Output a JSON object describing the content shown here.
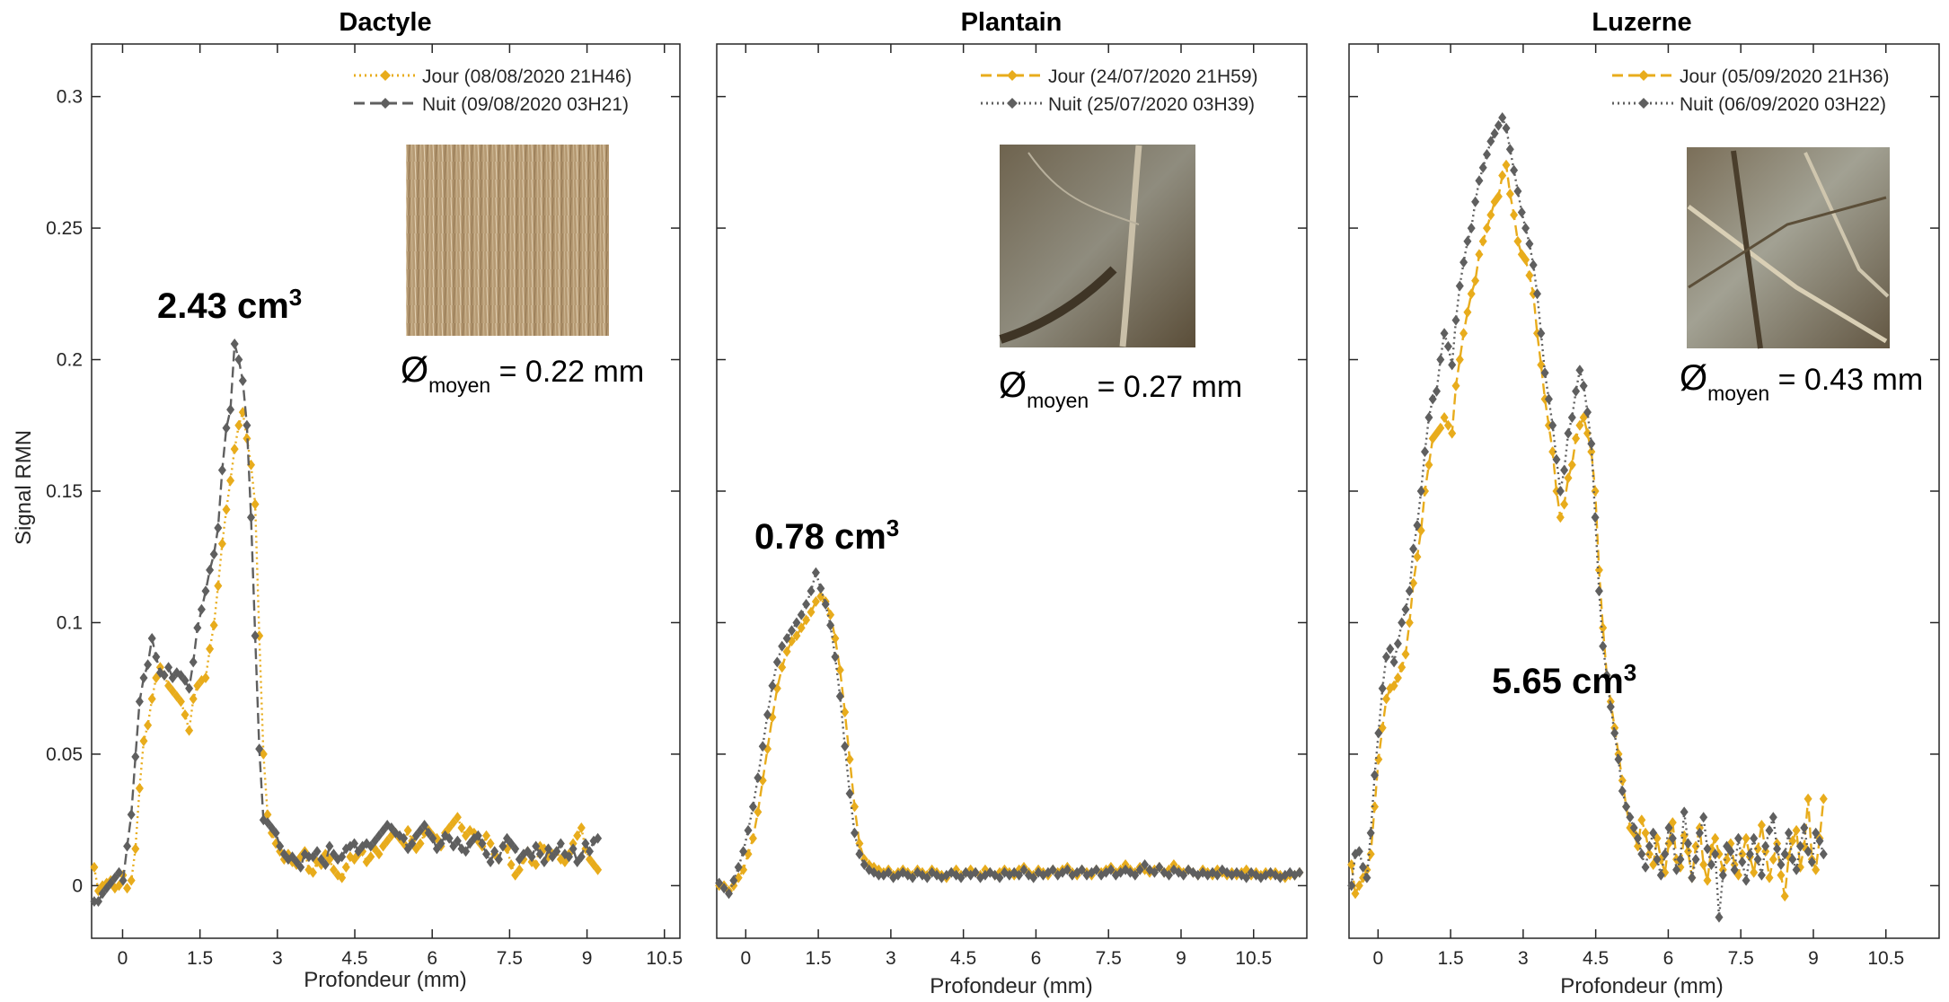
{
  "figure": {
    "ylabel": "Signal RMN",
    "colors": {
      "jour": "#E8AC1C",
      "nuit": "#5F5F5F"
    }
  },
  "chart_data": [
    {
      "type": "line",
      "title": "Dactyle",
      "xlabel": "Profondeur (mm)",
      "ylabel": "Signal RMN",
      "xlim": [
        -0.6,
        10.8
      ],
      "ylim": [
        -0.02,
        0.32
      ],
      "xticks": [
        "0",
        "1.5",
        "3",
        "4.5",
        "6",
        "7.5",
        "9",
        "10.5"
      ],
      "yticks": [
        "0",
        "0.05",
        "0.1",
        "0.15",
        "0.2",
        "0.25",
        "0.3"
      ],
      "legend_position": "top-right",
      "volume_label": {
        "value": "2.43 cm",
        "sup": "3"
      },
      "diameter_label": {
        "sym": "Ø",
        "sub": "moyen",
        "rest": " = 0.22 mm"
      },
      "inset_image": "dense dry root mat",
      "series": [
        {
          "name": "Jour (08/08/2020 21H46)",
          "color": "#E8AC1C",
          "style": "dotted",
          "x_start": -0.55,
          "x_step": 0.08,
          "y": [
            0.007,
            -0.002,
            0,
            0.001,
            0.002,
            -0.001,
            0,
            0.004,
            -0.001,
            0.002,
            0.014,
            0.037,
            0.055,
            0.061,
            0.071,
            0.079,
            0.083,
            0.08,
            0.076,
            0.074,
            0.072,
            0.07,
            0.065,
            0.059,
            0.071,
            0.076,
            0.078,
            0.079,
            0.09,
            0.099,
            0.114,
            0.13,
            0.143,
            0.154,
            0.166,
            0.175,
            0.18,
            0.17,
            0.16,
            0.145,
            0.095,
            0.05,
            0.027,
            0.02,
            0.016,
            0.013,
            0.01,
            0.012,
            0.009,
            0.008,
            0.011,
            0.013,
            0.006,
            0.005,
            0.009,
            0.008,
            0.012,
            0.01,
            0.006,
            0.004,
            0.003,
            0.007,
            0.011,
            0.01,
            0.012,
            0.013,
            0.009,
            0.011,
            0.014,
            0.012,
            0.015,
            0.017,
            0.019,
            0.02,
            0.018,
            0.016,
            0.021,
            0.017,
            0.014,
            0.016,
            0.02,
            0.021,
            0.019,
            0.018,
            0.015,
            0.02,
            0.022,
            0.024,
            0.026,
            0.022,
            0.019,
            0.021,
            0.02,
            0.017,
            0.015,
            0.019,
            0.016,
            0.012,
            0.01,
            0.015,
            0.014,
            0.008,
            0.004,
            0.006,
            0.01,
            0.013,
            0.009,
            0.008,
            0.015,
            0.014,
            0.011,
            0.012,
            0.013,
            0.01,
            0.009,
            0.012,
            0.016,
            0.019,
            0.022,
            0.014,
            0.01,
            0.008,
            0.006
          ]
        },
        {
          "name": "Nuit (09/08/2020 03H21)",
          "color": "#5F5F5F",
          "style": "dashed",
          "x_start": -0.55,
          "x_step": 0.08,
          "y": [
            -0.006,
            -0.006,
            -0.003,
            -0.001,
            0.001,
            0.003,
            0.005,
            0.002,
            0.015,
            0.027,
            0.049,
            0.07,
            0.079,
            0.084,
            0.094,
            0.087,
            0.081,
            0.08,
            0.083,
            0.079,
            0.081,
            0.08,
            0.078,
            0.075,
            0.085,
            0.098,
            0.105,
            0.112,
            0.12,
            0.126,
            0.136,
            0.158,
            0.174,
            0.181,
            0.206,
            0.2,
            0.192,
            0.175,
            0.14,
            0.095,
            0.052,
            0.025,
            0.024,
            0.022,
            0.02,
            0.015,
            0.012,
            0.01,
            0.011,
            0.009,
            0.007,
            0.012,
            0.011,
            0.011,
            0.013,
            0.01,
            0.008,
            0.015,
            0.012,
            0.01,
            0.011,
            0.014,
            0.015,
            0.016,
            0.013,
            0.015,
            0.016,
            0.015,
            0.017,
            0.019,
            0.021,
            0.023,
            0.022,
            0.02,
            0.019,
            0.018,
            0.014,
            0.016,
            0.019,
            0.021,
            0.023,
            0.02,
            0.018,
            0.014,
            0.016,
            0.019,
            0.018,
            0.015,
            0.017,
            0.014,
            0.013,
            0.016,
            0.018,
            0.019,
            0.016,
            0.012,
            0.009,
            0.013,
            0.01,
            0.015,
            0.018,
            0.016,
            0.014,
            0.01,
            0.012,
            0.013,
            0.011,
            0.015,
            0.012,
            0.009,
            0.014,
            0.011,
            0.013,
            0.016,
            0.012,
            0.011,
            0.014,
            0.009,
            0.011,
            0.016,
            0.013,
            0.017,
            0.018
          ]
        }
      ]
    },
    {
      "type": "line",
      "title": "Plantain",
      "xlabel": "Profondeur (mm)",
      "ylabel": "",
      "xlim": [
        -0.6,
        11.6
      ],
      "ylim": [
        -0.02,
        0.32
      ],
      "xticks": [
        "0",
        "1.5",
        "3",
        "4.5",
        "6",
        "7.5",
        "9",
        "10.5"
      ],
      "yticks": [
        "0",
        "0.05",
        "0.1",
        "0.15",
        "0.2",
        "0.25",
        "0.3"
      ],
      "legend_position": "top-right",
      "volume_label": {
        "value": "0.78 cm",
        "sup": "3"
      },
      "diameter_label": {
        "sym": "Ø",
        "sub": "moyen",
        "rest": " = 0.27 mm"
      },
      "inset_image": "roots in soil close-up",
      "series": [
        {
          "name": "Jour (24/07/2020 21H59)",
          "color": "#E8AC1C",
          "style": "dashed",
          "x_start": -0.55,
          "x_step": 0.1,
          "y": [
            0,
            0,
            -0.002,
            0,
            0.003,
            0.006,
            0.012,
            0.018,
            0.028,
            0.04,
            0.052,
            0.064,
            0.075,
            0.083,
            0.089,
            0.093,
            0.095,
            0.098,
            0.101,
            0.104,
            0.108,
            0.11,
            0.108,
            0.103,
            0.094,
            0.082,
            0.066,
            0.048,
            0.03,
            0.016,
            0.01,
            0.008,
            0.007,
            0.006,
            0.005,
            0.006,
            0.004,
            0.005,
            0.006,
            0.005,
            0.004,
            0.006,
            0.005,
            0.004,
            0.006,
            0.005,
            0.004,
            0.003,
            0.005,
            0.006,
            0.004,
            0.005,
            0.006,
            0.005,
            0.004,
            0.006,
            0.005,
            0.004,
            0.005,
            0.006,
            0.005,
            0.004,
            0.006,
            0.007,
            0.005,
            0.004,
            0.006,
            0.005,
            0.004,
            0.006,
            0.005,
            0.006,
            0.007,
            0.005,
            0.004,
            0.006,
            0.005,
            0.004,
            0.006,
            0.005,
            0.006,
            0.007,
            0.005,
            0.006,
            0.008,
            0.006,
            0.005,
            0.007,
            0.006,
            0.005,
            0.006,
            0.007,
            0.005,
            0.006,
            0.008,
            0.006,
            0.005,
            0.006,
            0.005,
            0.004,
            0.006,
            0.005,
            0.004,
            0.006,
            0.005,
            0.004,
            0.005,
            0.004,
            0.005,
            0.006,
            0.004,
            0.005,
            0.004,
            0.005,
            0.004,
            0.005,
            0.004,
            0.003,
            0.004,
            0.004,
            0.005
          ]
        },
        {
          "name": "Nuit (25/07/2020 03H39)",
          "color": "#5F5F5F",
          "style": "dotted",
          "x_start": -0.55,
          "x_step": 0.1,
          "y": [
            0.001,
            -0.001,
            -0.003,
            0.002,
            0.007,
            0.013,
            0.021,
            0.03,
            0.041,
            0.053,
            0.065,
            0.076,
            0.085,
            0.091,
            0.094,
            0.097,
            0.1,
            0.103,
            0.107,
            0.112,
            0.119,
            0.113,
            0.107,
            0.099,
            0.087,
            0.072,
            0.053,
            0.035,
            0.02,
            0.012,
            0.008,
            0.006,
            0.005,
            0.004,
            0.004,
            0.005,
            0.003,
            0.004,
            0.005,
            0.004,
            0.003,
            0.005,
            0.004,
            0.003,
            0.005,
            0.004,
            0.003,
            0.004,
            0.005,
            0.004,
            0.003,
            0.005,
            0.004,
            0.005,
            0.003,
            0.004,
            0.005,
            0.004,
            0.003,
            0.005,
            0.004,
            0.005,
            0.004,
            0.006,
            0.004,
            0.003,
            0.005,
            0.004,
            0.005,
            0.006,
            0.004,
            0.005,
            0.006,
            0.004,
            0.005,
            0.006,
            0.004,
            0.005,
            0.006,
            0.004,
            0.005,
            0.006,
            0.004,
            0.005,
            0.006,
            0.005,
            0.004,
            0.006,
            0.008,
            0.006,
            0.005,
            0.007,
            0.005,
            0.004,
            0.006,
            0.005,
            0.004,
            0.006,
            0.005,
            0.004,
            0.005,
            0.004,
            0.005,
            0.004,
            0.006,
            0.005,
            0.004,
            0.005,
            0.004,
            0.003,
            0.005,
            0.004,
            0.003,
            0.004,
            0.005,
            0.004,
            0.003,
            0.004,
            0.005,
            0.004,
            0.005
          ]
        }
      ]
    },
    {
      "type": "line",
      "title": "Luzerne",
      "xlabel": "Profondeur (mm)",
      "ylabel": "",
      "xlim": [
        -0.6,
        11.6
      ],
      "ylim": [
        -0.02,
        0.32
      ],
      "xticks": [
        "0",
        "1.5",
        "3",
        "4.5",
        "6",
        "7.5",
        "9",
        "10.5"
      ],
      "yticks": [
        "0",
        "0.05",
        "0.1",
        "0.15",
        "0.2",
        "0.25",
        "0.3"
      ],
      "legend_position": "top-right",
      "volume_label": {
        "value": "5.65 cm",
        "sup": "3"
      },
      "diameter_label": {
        "sym": "Ø",
        "sub": "moyen",
        "rest": " = 0.43 mm"
      },
      "inset_image": "thick roots in soil close-up",
      "series": [
        {
          "name": "Jour (05/09/2020 21H36)",
          "color": "#E8AC1C",
          "style": "dashed",
          "x_start": -0.55,
          "x_step": 0.08,
          "y": [
            0.008,
            -0.003,
            0,
            0.003,
            0.006,
            0.012,
            0.03,
            0.048,
            0.06,
            0.071,
            0.075,
            0.076,
            0.079,
            0.083,
            0.088,
            0.1,
            0.115,
            0.125,
            0.135,
            0.15,
            0.16,
            0.17,
            0.172,
            0.174,
            0.178,
            0.175,
            0.172,
            0.19,
            0.2,
            0.21,
            0.218,
            0.225,
            0.23,
            0.24,
            0.245,
            0.25,
            0.255,
            0.26,
            0.262,
            0.27,
            0.274,
            0.263,
            0.255,
            0.245,
            0.24,
            0.238,
            0.232,
            0.225,
            0.21,
            0.198,
            0.185,
            0.175,
            0.165,
            0.15,
            0.14,
            0.145,
            0.155,
            0.16,
            0.17,
            0.175,
            0.178,
            0.172,
            0.165,
            0.15,
            0.12,
            0.098,
            0.08,
            0.07,
            0.06,
            0.05,
            0.04,
            0.03,
            0.022,
            0.02,
            0.015,
            0.025,
            0.02,
            0.012,
            0.008,
            0.018,
            0.01,
            0.005,
            0.016,
            0.024,
            0.01,
            0.007,
            0.019,
            0.013,
            0.003,
            0.015,
            0.022,
            0.008,
            0.002,
            0.014,
            0.018,
            0.012,
            0.006,
            0.01,
            0.016,
            0.008,
            0.004,
            0.012,
            0.018,
            0.011,
            0.005,
            0.014,
            0.023,
            0.013,
            0.003,
            0.01,
            0.016,
            0.004,
            -0.004,
            0.011,
            0.017,
            0.021,
            0.007,
            0.015,
            0.033,
            0.01,
            0.006,
            0.018,
            0.033
          ]
        },
        {
          "name": "Nuit (06/09/2020 03H22)",
          "color": "#5F5F5F",
          "style": "dotted",
          "x_start": -0.55,
          "x_step": 0.08,
          "y": [
            0,
            0.012,
            0.013,
            0.007,
            0.003,
            0.02,
            0.042,
            0.058,
            0.075,
            0.087,
            0.09,
            0.085,
            0.092,
            0.1,
            0.105,
            0.112,
            0.128,
            0.137,
            0.15,
            0.165,
            0.178,
            0.185,
            0.188,
            0.2,
            0.21,
            0.205,
            0.198,
            0.215,
            0.228,
            0.237,
            0.245,
            0.25,
            0.26,
            0.268,
            0.273,
            0.278,
            0.283,
            0.286,
            0.289,
            0.292,
            0.288,
            0.28,
            0.272,
            0.264,
            0.256,
            0.25,
            0.244,
            0.236,
            0.225,
            0.21,
            0.195,
            0.185,
            0.175,
            0.162,
            0.15,
            0.158,
            0.172,
            0.178,
            0.188,
            0.196,
            0.19,
            0.18,
            0.168,
            0.14,
            0.112,
            0.091,
            0.08,
            0.068,
            0.058,
            0.048,
            0.036,
            0.03,
            0.026,
            0.022,
            0.018,
            0.012,
            0.007,
            0.015,
            0.02,
            0.01,
            0.004,
            0.012,
            0.022,
            0.018,
            0.006,
            0.01,
            0.028,
            0.016,
            0.003,
            0.01,
            0.02,
            0.026,
            0.014,
            0.008,
            0.012,
            -0.012,
            0.004,
            0.015,
            0.013,
            0.006,
            0.018,
            0.009,
            0.002,
            0.012,
            0.018,
            0.01,
            0.004,
            0.015,
            0.021,
            0.026,
            0.014,
            0.008,
            0.012,
            0.02,
            0.01,
            0.006,
            0.015,
            0.022,
            0.013,
            0.009,
            0.02,
            0.017,
            0.012
          ]
        }
      ]
    }
  ]
}
